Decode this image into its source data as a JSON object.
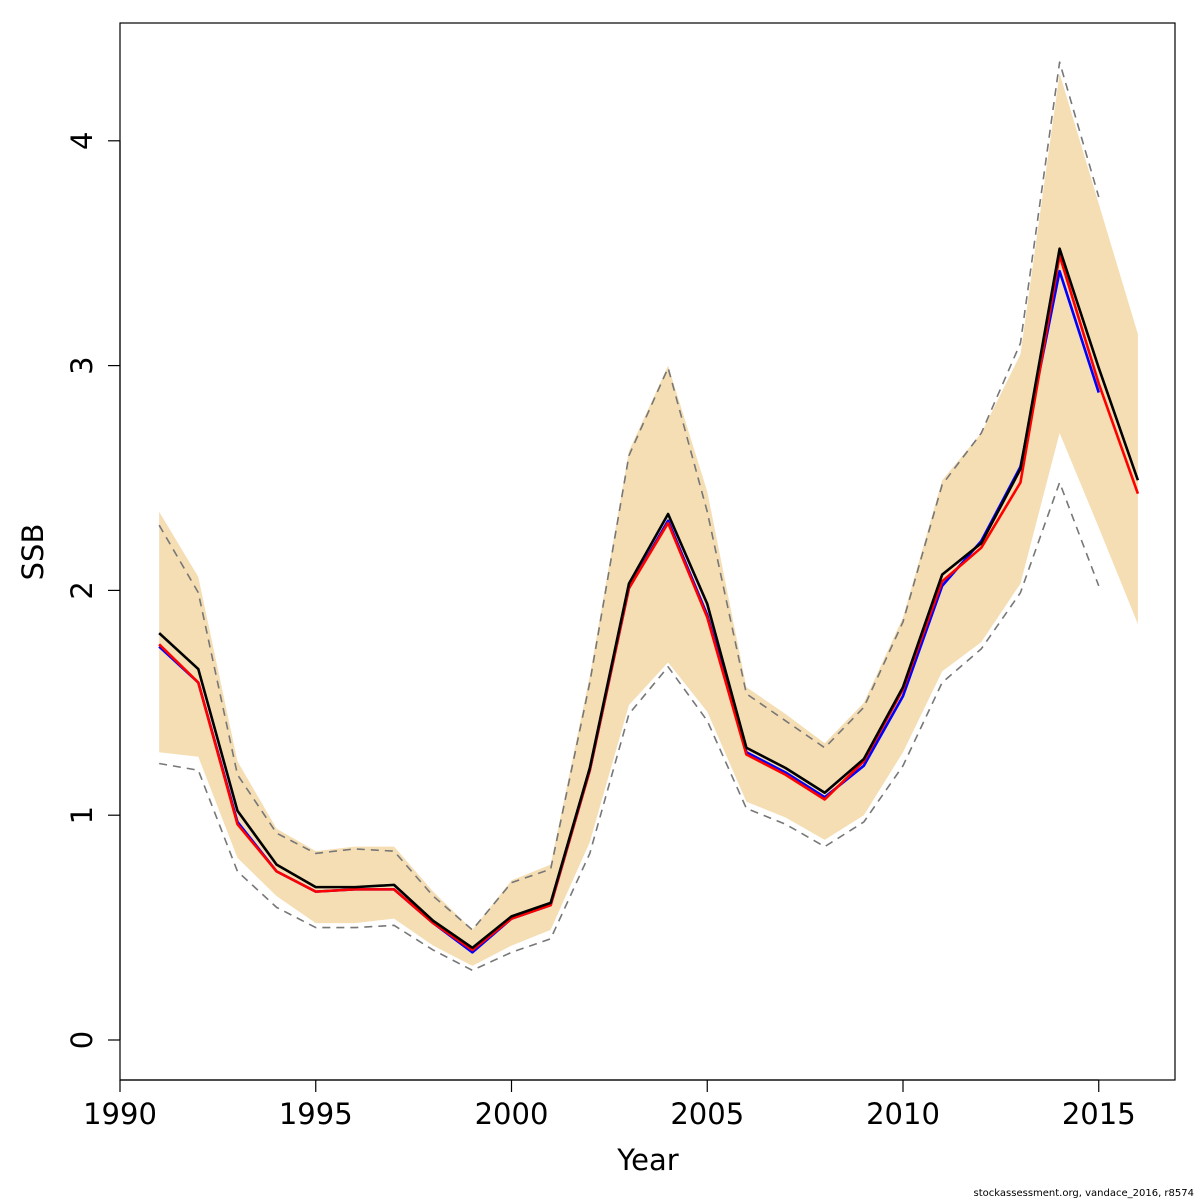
{
  "chart_data": {
    "type": "line",
    "title": "",
    "xlabel": "Year",
    "ylabel": "SSB",
    "xlim": [
      1990,
      2017
    ],
    "ylim": [
      0,
      4.4
    ],
    "x_ticks": [
      1990,
      1995,
      2000,
      2005,
      2010,
      2015
    ],
    "y_ticks": [
      0,
      1,
      2,
      3,
      4
    ],
    "grid": false,
    "legend": "none",
    "band": {
      "color": "#f5deb3",
      "x": [
        1991,
        1992,
        1993,
        1994,
        1995,
        1996,
        1997,
        1998,
        1999,
        2000,
        2001,
        2002,
        2003,
        2004,
        2005,
        2006,
        2007,
        2008,
        2009,
        2010,
        2011,
        2012,
        2013,
        2014,
        2015,
        2016
      ],
      "upper": [
        2.35,
        2.06,
        1.24,
        0.94,
        0.84,
        0.86,
        0.86,
        0.66,
        0.49,
        0.71,
        0.78,
        1.62,
        2.62,
        3.0,
        2.44,
        1.57,
        1.45,
        1.32,
        1.5,
        1.88,
        2.49,
        2.7,
        3.05,
        4.3,
        3.72,
        3.14
      ],
      "lower": [
        1.28,
        1.26,
        0.81,
        0.64,
        0.52,
        0.52,
        0.54,
        0.42,
        0.33,
        0.42,
        0.49,
        0.88,
        1.49,
        1.68,
        1.46,
        1.06,
        0.99,
        0.89,
        1.0,
        1.28,
        1.64,
        1.77,
        2.03,
        2.7,
        2.28,
        1.85
      ]
    },
    "series": [
      {
        "style": "dashed",
        "color": "#777777",
        "x": [
          1991,
          1992,
          1993,
          1994,
          1995,
          1996,
          1997,
          1998,
          1999,
          2000,
          2001,
          2002,
          2003,
          2004,
          2005,
          2006,
          2007,
          2008,
          2009,
          2010,
          2011,
          2012,
          2013,
          2014,
          2015
        ],
        "values": [
          2.29,
          1.99,
          1.18,
          0.92,
          0.83,
          0.85,
          0.84,
          0.64,
          0.49,
          0.7,
          0.76,
          1.59,
          2.6,
          2.99,
          2.35,
          1.54,
          1.42,
          1.3,
          1.48,
          1.86,
          2.47,
          2.7,
          3.1,
          4.35,
          3.75
        ]
      },
      {
        "style": "dashed",
        "color": "#777777",
        "x": [
          1991,
          1992,
          1993,
          1994,
          1995,
          1996,
          1997,
          1998,
          1999,
          2000,
          2001,
          2002,
          2003,
          2004,
          2005,
          2006,
          2007,
          2008,
          2009,
          2010,
          2011,
          2012,
          2013,
          2014,
          2015
        ],
        "values": [
          1.23,
          1.2,
          0.75,
          0.59,
          0.5,
          0.5,
          0.51,
          0.4,
          0.31,
          0.39,
          0.45,
          0.83,
          1.45,
          1.66,
          1.42,
          1.03,
          0.96,
          0.86,
          0.97,
          1.22,
          1.59,
          1.74,
          1.99,
          2.48,
          2.02
        ]
      },
      {
        "style": "solid",
        "color": "#0000ff",
        "x": [
          1991,
          1992,
          1993,
          1994,
          1995,
          1996,
          1997,
          1998,
          1999,
          2000,
          2001,
          2002,
          2003,
          2004,
          2005,
          2006,
          2007,
          2008,
          2009,
          2010,
          2011,
          2012,
          2013,
          2014,
          2015
        ],
        "values": [
          1.75,
          1.59,
          0.97,
          0.75,
          0.66,
          0.67,
          0.67,
          0.52,
          0.39,
          0.54,
          0.6,
          1.2,
          2.01,
          2.31,
          1.89,
          1.28,
          1.19,
          1.08,
          1.22,
          1.53,
          2.02,
          2.22,
          2.55,
          3.42,
          2.88
        ]
      },
      {
        "style": "solid",
        "color": "#ff0000",
        "x": [
          1991,
          1992,
          1993,
          1994,
          1995,
          1996,
          1997,
          1998,
          1999,
          2000,
          2001,
          2002,
          2003,
          2004,
          2005,
          2006,
          2007,
          2008,
          2009,
          2010,
          2011,
          2012,
          2013,
          2014,
          2015,
          2016
        ],
        "values": [
          1.76,
          1.59,
          0.96,
          0.75,
          0.66,
          0.67,
          0.67,
          0.52,
          0.4,
          0.54,
          0.6,
          1.2,
          2.01,
          2.3,
          1.88,
          1.27,
          1.18,
          1.07,
          1.24,
          1.56,
          2.04,
          2.19,
          2.48,
          3.49,
          2.92,
          2.43
        ]
      },
      {
        "style": "solid",
        "color": "#000000",
        "x": [
          1991,
          1992,
          1993,
          1994,
          1995,
          1996,
          1997,
          1998,
          1999,
          2000,
          2001,
          2002,
          2003,
          2004,
          2005,
          2006,
          2007,
          2008,
          2009,
          2010,
          2011,
          2012,
          2013,
          2014,
          2015,
          2016
        ],
        "values": [
          1.81,
          1.65,
          1.02,
          0.78,
          0.68,
          0.68,
          0.69,
          0.53,
          0.41,
          0.55,
          0.61,
          1.21,
          2.03,
          2.34,
          1.94,
          1.3,
          1.21,
          1.1,
          1.25,
          1.57,
          2.07,
          2.21,
          2.54,
          3.52,
          2.99,
          2.49
        ]
      }
    ],
    "credit": "stockassessment.org, vandace_2016, r8574"
  }
}
